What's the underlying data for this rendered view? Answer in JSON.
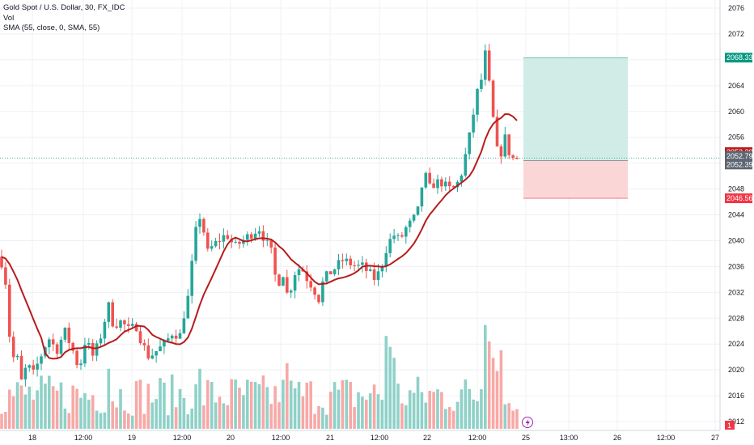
{
  "legend": {
    "symbol": "Gold Spot / U.S. Dollar, 30, FX_IDC",
    "volume": "Vol",
    "sma": "SMA (55, close, 0, SMA, 55)"
  },
  "colors": {
    "up": "#26a69a",
    "down": "#ef5350",
    "up_volume": "#8fd1c8",
    "down_volume": "#f7a9a7",
    "sma": "#b71c1c",
    "profit_zone": "#d1ece6",
    "loss_zone": "#fbd6d7",
    "grid": "#eef0f3",
    "axis_text": "#131722",
    "current_price_tag": "#5d6672",
    "entry_tag": "#5d6672",
    "target_tag": "#089981",
    "stop_tag": "#f23645",
    "sma_tag": "#b71c1c"
  },
  "chart_data": {
    "type": "candlestick",
    "ylim": [
      2010,
      2078
    ],
    "y_ticks": [
      2012,
      2016,
      2020,
      2024,
      2028,
      2032,
      2036,
      2040,
      2044,
      2048,
      2052,
      2056,
      2060,
      2064,
      2068,
      2072,
      2076
    ],
    "x_ticks": [
      "18",
      "12:00",
      "19",
      "12:00",
      "20",
      "12:00",
      "21",
      "12:00",
      "22",
      "12:00",
      "25",
      "13:00",
      "26",
      "12:00",
      "27"
    ],
    "price_labels": {
      "target": "2068.33",
      "sma": "2053.30",
      "last": "2052.79",
      "entry": "2052.39",
      "stop": "2046.56",
      "volume_badge": "1"
    },
    "position": {
      "entry": 2052.39,
      "target": 2068.33,
      "stop": 2046.56
    },
    "current_price": 2052.79,
    "price_path": [
      [
        0,
        2037.5
      ],
      [
        6,
        2035
      ],
      [
        10,
        2029
      ],
      [
        14,
        2021
      ],
      [
        20,
        2023
      ],
      [
        26,
        2018
      ],
      [
        34,
        2021
      ],
      [
        40,
        2019
      ],
      [
        50,
        2022
      ],
      [
        60,
        2025
      ],
      [
        70,
        2023
      ],
      [
        80,
        2026
      ],
      [
        90,
        2023
      ],
      [
        98,
        2020
      ],
      [
        106,
        2025
      ],
      [
        114,
        2022
      ],
      [
        122,
        2024
      ],
      [
        126,
        2026
      ],
      [
        134,
        2030
      ],
      [
        140,
        2027
      ],
      [
        150,
        2027.5
      ],
      [
        160,
        2026
      ],
      [
        168,
        2027
      ],
      [
        176,
        2024
      ],
      [
        184,
        2022
      ],
      [
        194,
        2023
      ],
      [
        204,
        2024
      ],
      [
        214,
        2026
      ],
      [
        222,
        2025
      ],
      [
        228,
        2029
      ],
      [
        234,
        2032
      ],
      [
        240,
        2040
      ],
      [
        246,
        2044
      ],
      [
        250,
        2043
      ],
      [
        256,
        2038
      ],
      [
        262,
        2039
      ],
      [
        270,
        2040
      ],
      [
        280,
        2041
      ],
      [
        290,
        2039
      ],
      [
        300,
        2040
      ],
      [
        310,
        2041
      ],
      [
        320,
        2042
      ],
      [
        328,
        2040
      ],
      [
        336,
        2038
      ],
      [
        342,
        2033
      ],
      [
        350,
        2035
      ],
      [
        356,
        2031
      ],
      [
        364,
        2035
      ],
      [
        372,
        2036
      ],
      [
        380,
        2034
      ],
      [
        386,
        2033
      ],
      [
        394,
        2031
      ],
      [
        400,
        2034
      ],
      [
        408,
        2035
      ],
      [
        416,
        2036
      ],
      [
        424,
        2037
      ],
      [
        432,
        2036.5
      ],
      [
        440,
        2036
      ],
      [
        448,
        2036
      ],
      [
        456,
        2035
      ],
      [
        464,
        2034
      ],
      [
        470,
        2035.5
      ],
      [
        478,
        2039
      ],
      [
        486,
        2041
      ],
      [
        494,
        2040
      ],
      [
        502,
        2042
      ],
      [
        510,
        2043
      ],
      [
        518,
        2045
      ],
      [
        524,
        2051
      ],
      [
        530,
        2048
      ],
      [
        538,
        2049
      ],
      [
        546,
        2049
      ],
      [
        554,
        2048
      ],
      [
        560,
        2048
      ],
      [
        566,
        2049
      ],
      [
        572,
        2051
      ],
      [
        578,
        2055
      ],
      [
        584,
        2058
      ],
      [
        588,
        2064
      ],
      [
        592,
        2062
      ],
      [
        596,
        2066
      ],
      [
        600,
        2069
      ],
      [
        604,
        2065
      ],
      [
        608,
        2060
      ],
      [
        612,
        2057
      ],
      [
        616,
        2052
      ],
      [
        620,
        2054
      ],
      [
        624,
        2056
      ],
      [
        628,
        2054
      ],
      [
        632,
        2053
      ],
      [
        636,
        2052.5
      ],
      [
        641,
        2052.8
      ]
    ],
    "volume_spikes": [
      [
        134,
        0.55
      ],
      [
        478,
        0.85
      ],
      [
        484,
        0.75
      ],
      [
        600,
        0.95
      ],
      [
        604,
        0.8
      ],
      [
        356,
        0.6
      ],
      [
        246,
        0.55
      ],
      [
        488,
        0.65
      ],
      [
        610,
        0.65
      ]
    ]
  }
}
